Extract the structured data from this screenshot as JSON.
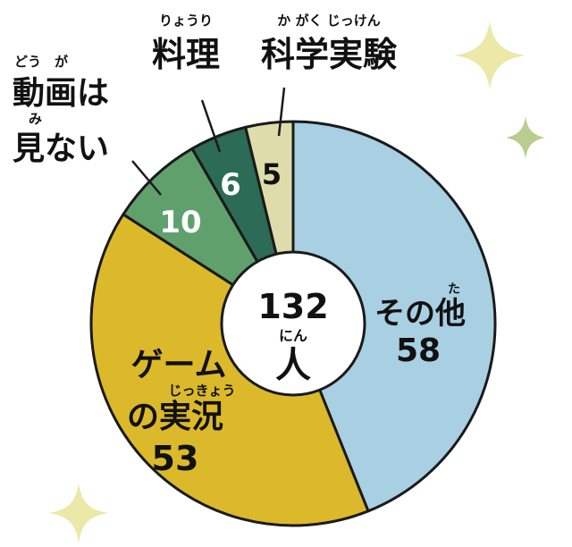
{
  "chart_data": {
    "type": "pie",
    "variant": "donut",
    "center_total": "132",
    "center_unit_ruby": "にん",
    "center_unit": "人",
    "slices": [
      {
        "name": "その他",
        "name_ruby": "た",
        "value": 58,
        "value_label": "58",
        "color": "#a9cfe3"
      },
      {
        "name_line1": "ゲーム",
        "name_line2": "の実況",
        "name_ruby": "じっきょう",
        "value": 53,
        "value_label": "53",
        "color": "#dcb92a"
      },
      {
        "name_line1": "動画は",
        "name_line2": "見ない",
        "name_ruby1": "どう　が",
        "name_ruby2": "み",
        "value": 10,
        "value_label": "10",
        "color": "#5fa06c"
      },
      {
        "name": "料理",
        "name_ruby": "りょうり",
        "value": 6,
        "value_label": "6",
        "color": "#2c6b55"
      },
      {
        "name": "科学実験",
        "name_ruby": "か がく じっけん",
        "value": 5,
        "value_label": "5",
        "color": "#dedcaa"
      }
    ],
    "decoration_colors": [
      "#ece8a8",
      "#b9cd8f"
    ]
  }
}
